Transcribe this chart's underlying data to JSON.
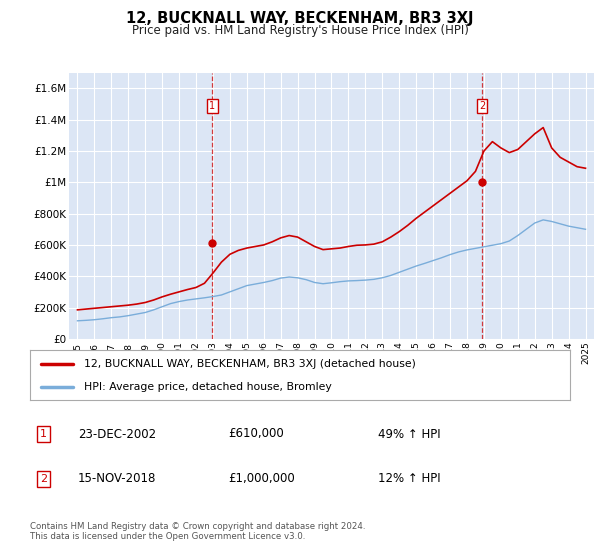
{
  "title": "12, BUCKNALL WAY, BECKENHAM, BR3 3XJ",
  "subtitle": "Price paid vs. HM Land Registry's House Price Index (HPI)",
  "bg_color": "#dce6f5",
  "grid_color": "#ffffff",
  "ylim": [
    0,
    1700000
  ],
  "yticks": [
    0,
    200000,
    400000,
    600000,
    800000,
    1000000,
    1200000,
    1400000,
    1600000
  ],
  "ytick_labels": [
    "£0",
    "£200K",
    "£400K",
    "£600K",
    "£800K",
    "£1M",
    "£1.2M",
    "£1.4M",
    "£1.6M"
  ],
  "xtick_years": [
    1995,
    1996,
    1997,
    1998,
    1999,
    2000,
    2001,
    2002,
    2003,
    2004,
    2005,
    2006,
    2007,
    2008,
    2009,
    2010,
    2011,
    2012,
    2013,
    2014,
    2015,
    2016,
    2017,
    2018,
    2019,
    2020,
    2021,
    2022,
    2023,
    2024,
    2025
  ],
  "xtick_labels": [
    "1995",
    "1996",
    "1997",
    "1998",
    "1999",
    "2000",
    "2001",
    "2002",
    "2003",
    "2004",
    "2005",
    "2006",
    "2007",
    "2008",
    "2009",
    "2010",
    "2011",
    "2012",
    "2013",
    "2014",
    "2015",
    "2016",
    "2017",
    "2018",
    "2019",
    "2020",
    "2021",
    "2022",
    "2023",
    "2024",
    "2025"
  ],
  "hpi_years": [
    1995,
    1995.5,
    1996,
    1996.5,
    1997,
    1997.5,
    1998,
    1998.5,
    1999,
    1999.5,
    2000,
    2000.5,
    2001,
    2001.5,
    2002,
    2002.5,
    2003,
    2003.5,
    2004,
    2004.5,
    2005,
    2005.5,
    2006,
    2006.5,
    2007,
    2007.5,
    2008,
    2008.5,
    2009,
    2009.5,
    2010,
    2010.5,
    2011,
    2011.5,
    2012,
    2012.5,
    2013,
    2013.5,
    2014,
    2014.5,
    2015,
    2015.5,
    2016,
    2016.5,
    2017,
    2017.5,
    2018,
    2018.5,
    2019,
    2019.5,
    2020,
    2020.5,
    2021,
    2021.5,
    2022,
    2022.5,
    2023,
    2023.5,
    2024,
    2024.5,
    2025
  ],
  "hpi_values": [
    115000,
    118000,
    122000,
    128000,
    135000,
    140000,
    148000,
    158000,
    168000,
    185000,
    205000,
    225000,
    238000,
    248000,
    255000,
    262000,
    270000,
    280000,
    300000,
    320000,
    340000,
    350000,
    360000,
    372000,
    388000,
    395000,
    390000,
    378000,
    360000,
    352000,
    358000,
    365000,
    370000,
    372000,
    375000,
    380000,
    390000,
    405000,
    425000,
    445000,
    465000,
    482000,
    500000,
    518000,
    538000,
    555000,
    568000,
    578000,
    588000,
    598000,
    608000,
    625000,
    660000,
    700000,
    740000,
    760000,
    750000,
    735000,
    720000,
    710000,
    700000
  ],
  "price_years": [
    1995,
    1995.5,
    1996,
    1996.5,
    1997,
    1997.5,
    1998,
    1998.5,
    1999,
    1999.5,
    2000,
    2000.5,
    2001,
    2001.5,
    2002,
    2002.5,
    2003,
    2003.5,
    2004,
    2004.5,
    2005,
    2005.5,
    2006,
    2006.5,
    2007,
    2007.5,
    2008,
    2008.5,
    2009,
    2009.5,
    2010,
    2010.5,
    2011,
    2011.5,
    2012,
    2012.5,
    2013,
    2013.5,
    2014,
    2014.5,
    2015,
    2015.5,
    2016,
    2016.5,
    2017,
    2017.5,
    2018,
    2018.5,
    2019,
    2019.5,
    2020,
    2020.5,
    2021,
    2021.5,
    2022,
    2022.5,
    2023,
    2023.5,
    2024,
    2024.5,
    2025
  ],
  "price_values": [
    185000,
    190000,
    195000,
    200000,
    205000,
    210000,
    215000,
    222000,
    232000,
    248000,
    268000,
    285000,
    300000,
    315000,
    328000,
    355000,
    420000,
    490000,
    540000,
    565000,
    580000,
    590000,
    600000,
    620000,
    645000,
    660000,
    650000,
    620000,
    590000,
    570000,
    575000,
    580000,
    590000,
    598000,
    600000,
    605000,
    620000,
    650000,
    685000,
    725000,
    770000,
    810000,
    850000,
    890000,
    930000,
    970000,
    1010000,
    1070000,
    1200000,
    1260000,
    1220000,
    1190000,
    1210000,
    1260000,
    1310000,
    1350000,
    1220000,
    1160000,
    1130000,
    1100000,
    1090000
  ],
  "sale1_year": 2002.97,
  "sale1_price": 610000,
  "sale2_year": 2018.88,
  "sale2_price": 1000000,
  "red_color": "#cc0000",
  "blue_color": "#7aadda",
  "legend_entry1": "12, BUCKNALL WAY, BECKENHAM, BR3 3XJ (detached house)",
  "legend_entry2": "HPI: Average price, detached house, Bromley",
  "table_row1_num": "1",
  "table_row1_date": "23-DEC-2002",
  "table_row1_price": "£610,000",
  "table_row1_hpi": "49% ↑ HPI",
  "table_row2_num": "2",
  "table_row2_date": "15-NOV-2018",
  "table_row2_price": "£1,000,000",
  "table_row2_hpi": "12% ↑ HPI",
  "footer": "Contains HM Land Registry data © Crown copyright and database right 2024.\nThis data is licensed under the Open Government Licence v3.0."
}
